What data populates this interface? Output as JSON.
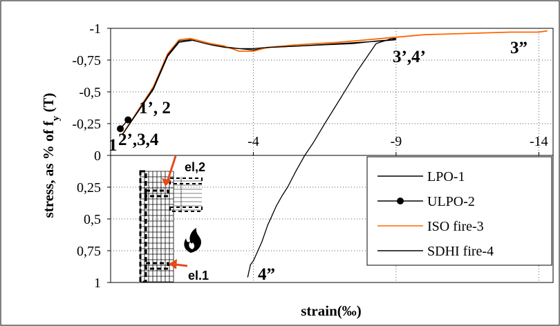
{
  "chart_data": {
    "type": "line",
    "title": "",
    "xlabel": "strain(‰)",
    "ylabel_parts": [
      "stress, as % of f",
      "y",
      " (T)"
    ],
    "xlim": [
      1,
      -14.5
    ],
    "ylim": [
      1,
      -1
    ],
    "x_ticks": [
      {
        "value": -4,
        "label": "-4"
      },
      {
        "value": -9,
        "label": "-9"
      },
      {
        "value": -14,
        "label": "-14"
      }
    ],
    "y_ticks": [
      {
        "value": -1,
        "label": "-1"
      },
      {
        "value": -0.75,
        "label": "-0,75"
      },
      {
        "value": -0.5,
        "label": "-0,5"
      },
      {
        "value": -0.25,
        "label": "-0,25"
      },
      {
        "value": 0,
        "label": "0"
      },
      {
        "value": 0.25,
        "label": "0,25"
      },
      {
        "value": 0.5,
        "label": "0,5"
      },
      {
        "value": 0.75,
        "label": "0,75"
      },
      {
        "value": 1,
        "label": "1"
      }
    ],
    "grid": true,
    "series": [
      {
        "name": "LPO-1",
        "color": "#000000",
        "marker": "none",
        "x": [
          0.6,
          -0.5,
          -1.0,
          -1.4,
          -2.0,
          -2.8,
          -3.5,
          -4.0,
          -4.6,
          -5.5,
          -6.5,
          -7.5,
          -8.3,
          -8.85,
          -9.0,
          -8.85,
          -8.3,
          -7.6,
          -7.0,
          -6.5,
          -6.1,
          -5.8,
          -5.5,
          -5.2,
          -5.0,
          -4.8,
          -4.5,
          -4.3,
          -4.1,
          -4.0,
          -3.9,
          -3.8
        ],
        "y": [
          -0.16,
          -0.52,
          -0.78,
          -0.89,
          -0.91,
          -0.86,
          -0.84,
          -0.83,
          -0.85,
          -0.86,
          -0.87,
          -0.88,
          -0.9,
          -0.91,
          -0.92,
          -0.92,
          -0.88,
          -0.65,
          -0.43,
          -0.25,
          -0.1,
          0.0,
          0.12,
          0.25,
          0.32,
          0.4,
          0.55,
          0.68,
          0.78,
          0.83,
          0.86,
          0.96
        ]
      },
      {
        "name": "ULPO-2",
        "color": "#000000",
        "marker": "circle",
        "x": [
          0.66,
          0.39
        ],
        "y": [
          -0.21,
          -0.28
        ]
      },
      {
        "name": "ISO fire-3",
        "color": "#ff6600",
        "marker": "none",
        "x": [
          0.6,
          -0.5,
          -1.0,
          -1.4,
          -1.8,
          -2.5,
          -3.0,
          -3.5,
          -4.0,
          -4.5,
          -5.5,
          -7.0,
          -8.5,
          -10.0,
          -11.5,
          -13.0,
          -14.0,
          -14.3
        ],
        "y": [
          -0.16,
          -0.54,
          -0.8,
          -0.91,
          -0.92,
          -0.88,
          -0.86,
          -0.82,
          -0.82,
          -0.85,
          -0.87,
          -0.89,
          -0.92,
          -0.95,
          -0.96,
          -0.97,
          -0.97,
          -0.98
        ]
      },
      {
        "name": "SDHI fire-4",
        "color": "#000000",
        "marker": "none",
        "x": [
          0.6,
          -0.5,
          -1.0,
          -1.4,
          -1.8,
          -2.5,
          -3.0,
          -3.5,
          -4.0,
          -4.5,
          -5.5,
          -7.0,
          -8.5,
          -9.0
        ],
        "y": [
          -0.16,
          -0.53,
          -0.79,
          -0.9,
          -0.91,
          -0.87,
          -0.85,
          -0.84,
          -0.84,
          -0.85,
          -0.86,
          -0.88,
          -0.9,
          -0.91
        ]
      }
    ],
    "annotations": [
      {
        "text": "1’, 2",
        "x": 0.4,
        "y": -0.28
      },
      {
        "text": "1",
        "x": 0.95,
        "y": -0.12
      },
      {
        "text": "2’,3,4",
        "x": 0.55,
        "y": -0.12
      },
      {
        "text": "3’,4’",
        "x": -9.8,
        "y": -0.8
      },
      {
        "text": "3”",
        "x": -14.2,
        "y": -0.82
      },
      {
        "text": "4”",
        "x": -5.0,
        "y": 0.98
      }
    ],
    "legend": {
      "position": "bottom-right",
      "entries": [
        "LPO-1",
        "ULPO-2",
        "ISO fire-3",
        "SDHI fire-4"
      ]
    },
    "inset": {
      "labels": [
        "el,2",
        "el.1"
      ],
      "arrow_color": "#e64a19",
      "icon": "fire-icon"
    }
  }
}
